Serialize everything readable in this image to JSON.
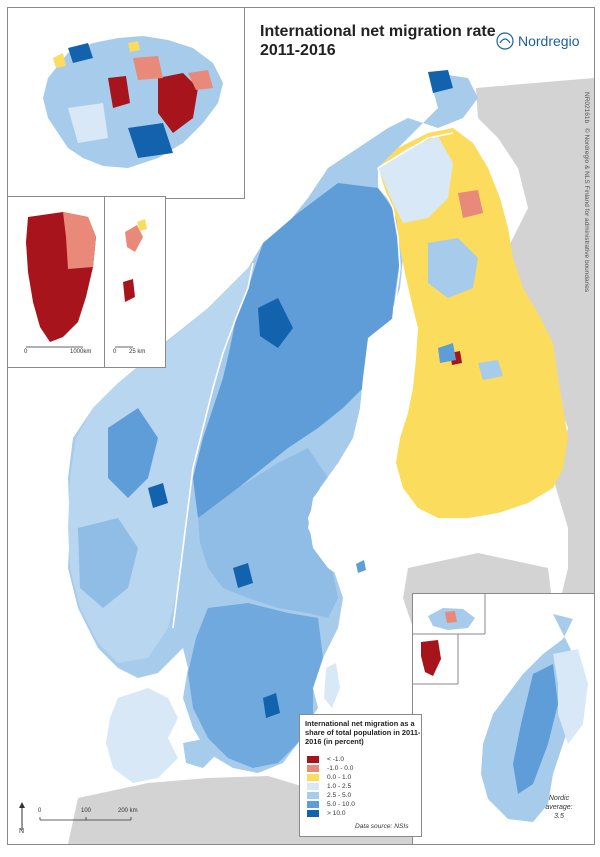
{
  "title": {
    "line1": "International net migration rate",
    "line2": "2011-2016"
  },
  "logo": {
    "name": "Nordregio",
    "icon": "nordregio-logo-icon"
  },
  "credits": {
    "id": "NR02161b",
    "copyright": "© Nordregio & NLS Finland for administrative boundaries"
  },
  "legend": {
    "title": "International net migration as a share of total population in 2011-2016 (in percent)",
    "classes": [
      {
        "label": "< -1.0",
        "color": "#a8141c"
      },
      {
        "label": "-1.0 - 0.0",
        "color": "#e8897a"
      },
      {
        "label": "0.0 - 1.0",
        "color": "#fbdc5c"
      },
      {
        "label": "1.0 - 2.5",
        "color": "#d8e8f6"
      },
      {
        "label": "2.5 - 5.0",
        "color": "#a6cbeb"
      },
      {
        "label": "5.0 - 10.0",
        "color": "#5f9dd8"
      },
      {
        "label": "> 10.0",
        "color": "#1262ad"
      }
    ],
    "data_source": "Data source: NSIs"
  },
  "nordic_average": {
    "label": "Nordic average:",
    "value": "3.5"
  },
  "scale_main": {
    "labels": [
      "0",
      "100",
      "200 km"
    ]
  },
  "scale_greenland": {
    "labels": [
      "0",
      "1000km"
    ]
  },
  "scale_svalbard": {
    "labels": [
      "0",
      "25 km"
    ]
  },
  "north_arrow": {
    "label": "N"
  },
  "colors": {
    "sea": "#ffffff",
    "non_nordic_land": "#d3d3d3",
    "border": "#ffffff",
    "frame": "#8a8a8a"
  }
}
